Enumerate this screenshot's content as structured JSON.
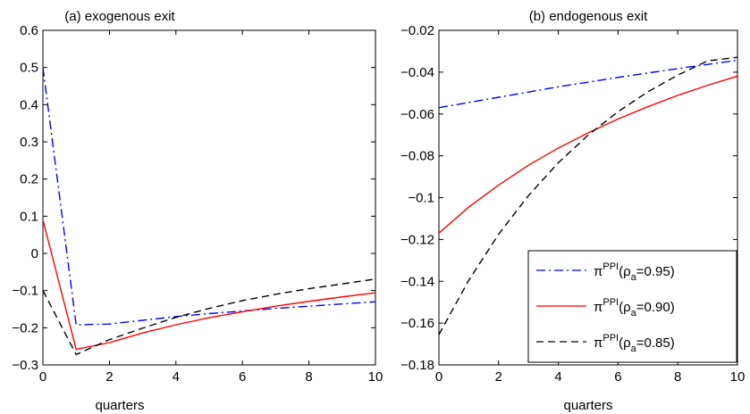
{
  "chart_data": [
    {
      "type": "line",
      "title": "(a) exogenous exit",
      "xlabel": "quarters",
      "ylabel": "",
      "xlim": [
        0,
        10
      ],
      "ylim": [
        -0.3,
        0.6
      ],
      "xticks": [
        0,
        2,
        4,
        6,
        8,
        10
      ],
      "yticks": [
        -0.3,
        -0.2,
        -0.1,
        0,
        0.1,
        0.2,
        0.3,
        0.4,
        0.5,
        0.6
      ],
      "ytick_labels": [
        "−0.3",
        "−0.2",
        "−0.1",
        "0",
        "0.1",
        "0.2",
        "0.3",
        "0.4",
        "0.5",
        "0.6"
      ],
      "xtick_labels": [
        "0",
        "2",
        "4",
        "6",
        "8",
        "10"
      ],
      "grid": false,
      "x": [
        0,
        1,
        2,
        3,
        4,
        5,
        6,
        7,
        8,
        9,
        10
      ],
      "series": [
        {
          "key": "s95",
          "color": "#0000ff",
          "dash": "dashdot",
          "values": [
            0.5,
            -0.192,
            -0.19,
            -0.18,
            -0.17,
            -0.162,
            -0.155,
            -0.148,
            -0.142,
            -0.136,
            -0.13
          ]
        },
        {
          "key": "s90",
          "color": "#ff0000",
          "dash": "solid",
          "values": [
            0.09,
            -0.258,
            -0.24,
            -0.214,
            -0.192,
            -0.173,
            -0.157,
            -0.142,
            -0.129,
            -0.117,
            -0.106
          ]
        },
        {
          "key": "s85",
          "color": "#000000",
          "dash": "dashed",
          "values": [
            -0.1,
            -0.272,
            -0.232,
            -0.201,
            -0.172,
            -0.148,
            -0.127,
            -0.11,
            -0.095,
            -0.082,
            -0.069
          ]
        }
      ]
    },
    {
      "type": "line",
      "title": "(b) endogenous exit",
      "xlabel": "quarters",
      "ylabel": "",
      "xlim": [
        0,
        10
      ],
      "ylim": [
        -0.18,
        -0.02
      ],
      "xticks": [
        0,
        2,
        4,
        6,
        8,
        10
      ],
      "yticks": [
        -0.18,
        -0.16,
        -0.14,
        -0.12,
        -0.1,
        -0.08,
        -0.06,
        -0.04,
        -0.02
      ],
      "ytick_labels": [
        "−0.18",
        "−0.16",
        "−0.14",
        "−0.12",
        "−0.1",
        "−0.08",
        "−0.06",
        "−0.04",
        "−0.02"
      ],
      "xtick_labels": [
        "0",
        "2",
        "4",
        "6",
        "8",
        "10"
      ],
      "grid": false,
      "legend_position": "bottom-right",
      "x": [
        0,
        1,
        2,
        3,
        4,
        5,
        6,
        7,
        8,
        9,
        10
      ],
      "series": [
        {
          "key": "s95",
          "name": "πPPI(ρa=0.95)",
          "name_base": "π",
          "name_sup": "PPI",
          "name_paren_open": "(ρ",
          "name_sub": "a",
          "name_rest": "=0.95)",
          "color": "#0000ff",
          "dash": "dashdot",
          "values": [
            -0.057,
            -0.0545,
            -0.052,
            -0.0495,
            -0.047,
            -0.0448,
            -0.0425,
            -0.0404,
            -0.0383,
            -0.0363,
            -0.0343
          ]
        },
        {
          "key": "s90",
          "name": "πPPI(ρa=0.90)",
          "name_base": "π",
          "name_sup": "PPI",
          "name_paren_open": "(ρ",
          "name_sub": "a",
          "name_rest": "=0.90)",
          "color": "#ff0000",
          "dash": "solid",
          "values": [
            -0.117,
            -0.1045,
            -0.094,
            -0.0845,
            -0.0763,
            -0.069,
            -0.0624,
            -0.0565,
            -0.0511,
            -0.0463,
            -0.0419
          ]
        },
        {
          "key": "s85",
          "name": "πPPI(ρa=0.85)",
          "name_base": "π",
          "name_sup": "PPI",
          "name_paren_open": "(ρ",
          "name_sub": "a",
          "name_rest": "=0.85)",
          "color": "#000000",
          "dash": "dashed",
          "values": [
            -0.1655,
            -0.1395,
            -0.1175,
            -0.099,
            -0.0833,
            -0.0701,
            -0.0589,
            -0.0494,
            -0.0414,
            -0.0346,
            -0.0329
          ]
        }
      ]
    }
  ]
}
